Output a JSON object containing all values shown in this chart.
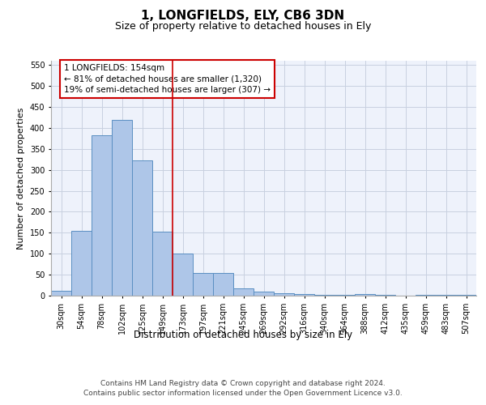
{
  "title": "1, LONGFIELDS, ELY, CB6 3DN",
  "subtitle": "Size of property relative to detached houses in Ely",
  "xlabel": "Distribution of detached houses by size in Ely",
  "ylabel": "Number of detached properties",
  "categories": [
    "30sqm",
    "54sqm",
    "78sqm",
    "102sqm",
    "125sqm",
    "149sqm",
    "173sqm",
    "197sqm",
    "221sqm",
    "245sqm",
    "269sqm",
    "292sqm",
    "316sqm",
    "340sqm",
    "364sqm",
    "388sqm",
    "412sqm",
    "435sqm",
    "459sqm",
    "483sqm",
    "507sqm"
  ],
  "values": [
    12,
    155,
    383,
    420,
    322,
    153,
    100,
    55,
    55,
    18,
    10,
    5,
    3,
    2,
    1,
    4,
    1,
    0,
    2,
    1,
    2
  ],
  "bar_color": "#aec6e8",
  "bar_edge_color": "#5a8fc2",
  "grid_color": "#c8d0e0",
  "background_color": "#eef2fb",
  "annotation_text": "1 LONGFIELDS: 154sqm\n← 81% of detached houses are smaller (1,320)\n19% of semi-detached houses are larger (307) →",
  "annotation_box_color": "#ffffff",
  "annotation_box_edge_color": "#cc0000",
  "vline_x_index": 5,
  "vline_color": "#cc0000",
  "ylim": [
    0,
    560
  ],
  "yticks": [
    0,
    50,
    100,
    150,
    200,
    250,
    300,
    350,
    400,
    450,
    500,
    550
  ],
  "footer": "Contains HM Land Registry data © Crown copyright and database right 2024.\nContains public sector information licensed under the Open Government Licence v3.0.",
  "title_fontsize": 11,
  "subtitle_fontsize": 9,
  "xlabel_fontsize": 8.5,
  "ylabel_fontsize": 8,
  "tick_fontsize": 7,
  "annotation_fontsize": 7.5,
  "footer_fontsize": 6.5
}
